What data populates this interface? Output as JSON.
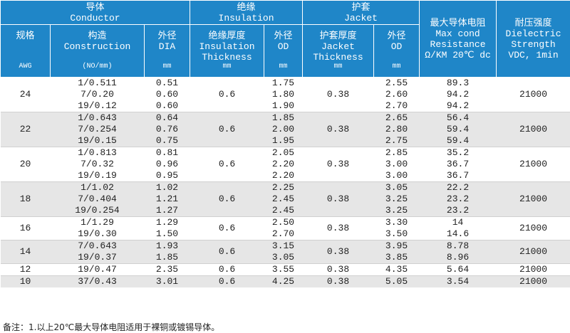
{
  "header": {
    "conductor_cn": "导体",
    "conductor_en": "Conductor",
    "insulation_cn": "绝缘",
    "insulation_en": "Insulation",
    "jacket_cn": "护套",
    "jacket_en": "Jacket",
    "resistance_cn": "最大导体电阻",
    "resistance_en1": "Max cond",
    "resistance_en2": "Resistance",
    "resistance_en3": "Ω/KM 20℃ dc",
    "dielectric_cn": "耐压强度",
    "dielectric_en1": "Dielectric",
    "dielectric_en2": "Strength",
    "dielectric_en3": "VDC, 1min",
    "size_cn": "规格",
    "size_unit": "AWG",
    "construction_cn": "构造",
    "construction_en": "Construction",
    "construction_unit": "(NO/mm)",
    "dia_cn": "外径",
    "dia_en": "DIA",
    "dia_unit": "mm",
    "ins_thick_cn": "绝缘厚度",
    "ins_thick_en1": "Insulation",
    "ins_thick_en2": "Thickness",
    "ins_thick_unit": "mm",
    "ins_od_cn": "外径",
    "ins_od_en": "OD",
    "ins_od_unit": "mm",
    "jkt_thick_cn": "护套厚度",
    "jkt_thick_en1": "Jacket",
    "jkt_thick_en2": "Thickness",
    "jkt_thick_unit": "mm",
    "jkt_od_cn": "外径",
    "jkt_od_en": "OD",
    "jkt_od_unit": "mm"
  },
  "groups": [
    {
      "awg": "24",
      "ins_thick": "0.6",
      "jkt_thick": "0.38",
      "dielectric": "21000",
      "rows": [
        {
          "construction": "1/0.511",
          "dia": "0.51",
          "ins_od": "1.75",
          "jkt_od": "2.55",
          "resistance": "89.3"
        },
        {
          "construction": "7/0.20",
          "dia": "0.60",
          "ins_od": "1.80",
          "jkt_od": "2.60",
          "resistance": "94.2"
        },
        {
          "construction": "19/0.12",
          "dia": "0.60",
          "ins_od": "1.90",
          "jkt_od": "2.70",
          "resistance": "94.2"
        }
      ]
    },
    {
      "awg": "22",
      "ins_thick": "0.6",
      "jkt_thick": "0.38",
      "dielectric": "21000",
      "rows": [
        {
          "construction": "1/0.643",
          "dia": "0.64",
          "ins_od": "1.85",
          "jkt_od": "2.65",
          "resistance": "56.4"
        },
        {
          "construction": "7/0.254",
          "dia": "0.76",
          "ins_od": "2.00",
          "jkt_od": "2.80",
          "resistance": "59.4"
        },
        {
          "construction": "19/0.15",
          "dia": "0.75",
          "ins_od": "1.95",
          "jkt_od": "2.75",
          "resistance": "59.4"
        }
      ]
    },
    {
      "awg": "20",
      "ins_thick": "0.6",
      "jkt_thick": "0.38",
      "dielectric": "21000",
      "rows": [
        {
          "construction": "1/0.813",
          "dia": "0.81",
          "ins_od": "2.05",
          "jkt_od": "2.85",
          "resistance": "35.2"
        },
        {
          "construction": "7/0.32",
          "dia": "0.96",
          "ins_od": "2.20",
          "jkt_od": "3.00",
          "resistance": "36.7"
        },
        {
          "construction": "19/0.19",
          "dia": "0.95",
          "ins_od": "2.20",
          "jkt_od": "3.00",
          "resistance": "36.7"
        }
      ]
    },
    {
      "awg": "18",
      "ins_thick": "0.6",
      "jkt_thick": "0.38",
      "dielectric": "21000",
      "rows": [
        {
          "construction": "1/1.02",
          "dia": "1.02",
          "ins_od": "2.25",
          "jkt_od": "3.05",
          "resistance": "22.2"
        },
        {
          "construction": "7/0.404",
          "dia": "1.21",
          "ins_od": "2.45",
          "jkt_od": "3.25",
          "resistance": "23.2"
        },
        {
          "construction": "19/0.254",
          "dia": "1.27",
          "ins_od": "2.45",
          "jkt_od": "3.25",
          "resistance": "23.2"
        }
      ]
    },
    {
      "awg": "16",
      "ins_thick": "0.6",
      "jkt_thick": "0.38",
      "dielectric": "21000",
      "rows": [
        {
          "construction": "1/1.29",
          "dia": "1.29",
          "ins_od": "2.50",
          "jkt_od": "3.30",
          "resistance": "14"
        },
        {
          "construction": "19/0.30",
          "dia": "1.50",
          "ins_od": "2.70",
          "jkt_od": "3.50",
          "resistance": "14.6"
        }
      ]
    },
    {
      "awg": "14",
      "ins_thick": "0.6",
      "jkt_thick": "0.38",
      "dielectric": "21000",
      "rows": [
        {
          "construction": "7/0.643",
          "dia": "1.93",
          "ins_od": "3.15",
          "jkt_od": "3.95",
          "resistance": "8.78"
        },
        {
          "construction": "19/0.37",
          "dia": "1.85",
          "ins_od": "3.05",
          "jkt_od": "3.85",
          "resistance": "8.96"
        }
      ]
    },
    {
      "awg": "12",
      "ins_thick": "0.6",
      "jkt_thick": "0.38",
      "dielectric": "21000",
      "rows": [
        {
          "construction": "19/0.47",
          "dia": "2.35",
          "ins_od": "3.55",
          "jkt_od": "4.35",
          "resistance": "5.64"
        }
      ]
    },
    {
      "awg": "10",
      "ins_thick": "0.6",
      "jkt_thick": "0.38",
      "dielectric": "21000",
      "rows": [
        {
          "construction": "37/0.43",
          "dia": "3.01",
          "ins_od": "4.25",
          "jkt_od": "5.05",
          "resistance": "3.54"
        }
      ]
    }
  ],
  "note": "备注：1.以上20℃最大导体电阻适用于裸铜或镀锡导体。"
}
